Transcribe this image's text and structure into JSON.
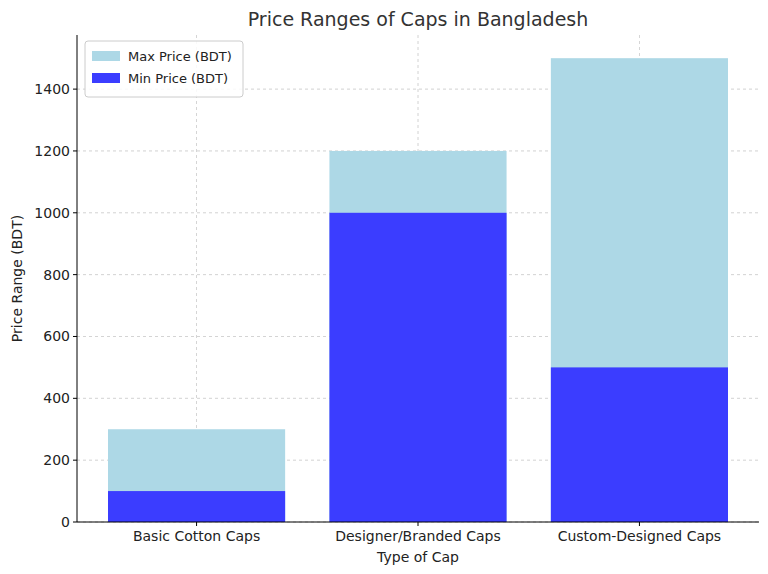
{
  "chart_data": {
    "type": "bar",
    "title": "Price Ranges of Caps in Bangladesh",
    "x_label": "Type of Cap",
    "y_label": "Price Range (BDT)",
    "categories": [
      "Basic Cotton Caps",
      "Designer/Branded Caps",
      "Custom-Designed Caps"
    ],
    "series": [
      {
        "name": "Max Price (BDT)",
        "color": "#add8e6",
        "values": [
          300,
          1200,
          1500
        ]
      },
      {
        "name": "Min Price (BDT)",
        "color": "#3b3dff",
        "values": [
          100,
          1000,
          500
        ]
      }
    ],
    "ylim": [
      0,
      1575
    ],
    "yticks": [
      0,
      200,
      400,
      600,
      800,
      1000,
      1200,
      1400
    ],
    "grid": true,
    "legend": "upper left",
    "stacked": false
  }
}
